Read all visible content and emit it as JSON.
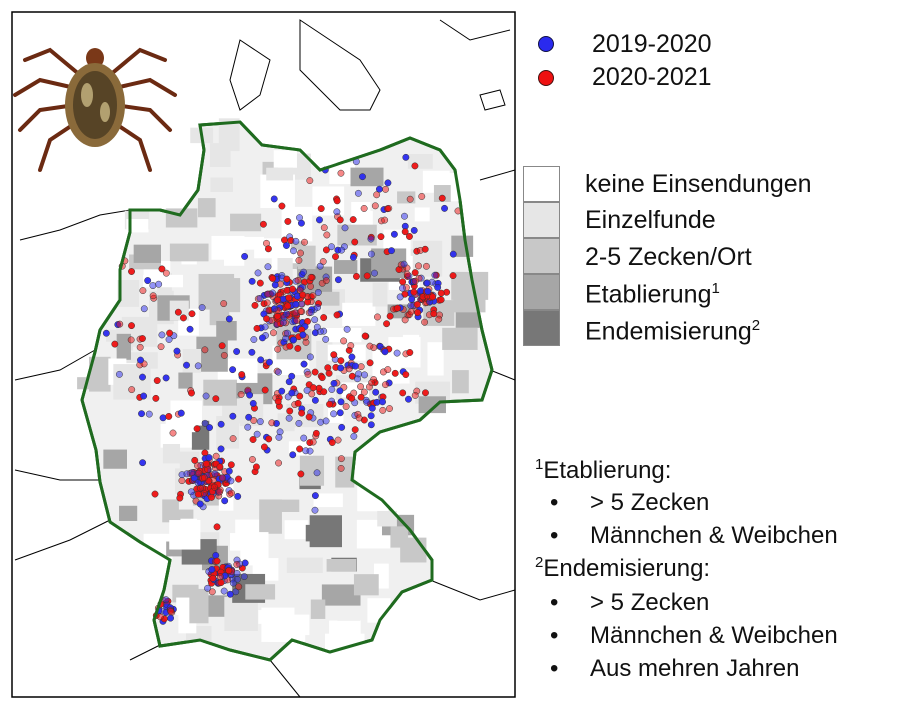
{
  "legend_points": [
    {
      "label": "2019-2020",
      "color": "#2a2aee"
    },
    {
      "label": "2020-2021",
      "color": "#ee1111"
    }
  ],
  "legend_classes": [
    {
      "label": "keine Einsendungen",
      "sup": "",
      "color": "#ffffff"
    },
    {
      "label": "Einzelfunde",
      "sup": "",
      "color": "#e6e6e6"
    },
    {
      "label": "2-5 Zecken/Ort",
      "sup": "",
      "color": "#c8c8c8"
    },
    {
      "label": "Etablierung",
      "sup": "1",
      "color": "#a6a6a6"
    },
    {
      "label": "Endemisierung",
      "sup": "2",
      "color": "#777777"
    }
  ],
  "notes": {
    "n1_sup": "1",
    "n1_title": "Etablierung:",
    "n1_items": [
      "> 5 Zecken",
      "Männchen & Weibchen"
    ],
    "n2_sup": "2",
    "n2_title": "Endemisierung:",
    "n2_items": [
      "> 5 Zecken",
      "Männchen & Weibchen",
      "Aus mehren Jahren"
    ],
    "bullet": "•"
  },
  "colors": {
    "border": "#1f6b1f",
    "map_frame": "#000000"
  },
  "icons": {
    "tick_image": "tick-photo-icon"
  }
}
